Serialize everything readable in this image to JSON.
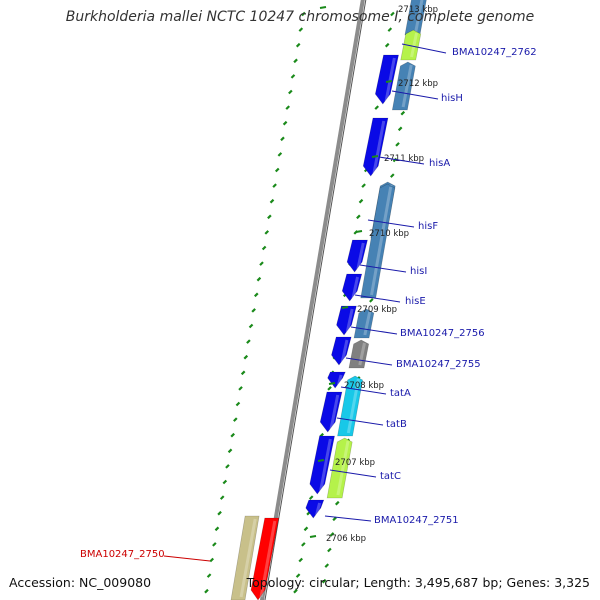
{
  "title": "Burkholderia mallei NCTC 10247 chromosome I, complete genome",
  "footer": {
    "accession": "Accession: NC_009080",
    "topology": "Topology: circular; Length: 3,495,687 bp; Genes: 3,325"
  },
  "colors": {
    "forward_cds": "#0a0ae6",
    "reverse_cds": "#4682b4",
    "gene_label": "#1a1aaa",
    "highlight_label": "#cc0000",
    "highlight_gene": "#ff0000",
    "rna_or_other": "#b5f24a",
    "pseudo": "#808080",
    "cyan_feature": "#18c8e8",
    "tan_feature": "#c8c08a",
    "ruler_tick": "#1a8a1a",
    "backbone": "#8c8c8c"
  },
  "ruler": [
    {
      "label": "2713 kbp"
    },
    {
      "label": "2712 kbp"
    },
    {
      "label": "2711 kbp"
    },
    {
      "label": "2710 kbp"
    },
    {
      "label": "2709 kbp"
    },
    {
      "label": "2708 kbp"
    },
    {
      "label": "2707 kbp"
    },
    {
      "label": "2706 kbp"
    }
  ],
  "gene_labels": [
    {
      "text": "BMA10247_2762",
      "highlight": false
    },
    {
      "text": "hisH",
      "highlight": false
    },
    {
      "text": "hisA",
      "highlight": false
    },
    {
      "text": "hisF",
      "highlight": false
    },
    {
      "text": "hisI",
      "highlight": false
    },
    {
      "text": "hisE",
      "highlight": false
    },
    {
      "text": "BMA10247_2756",
      "highlight": false
    },
    {
      "text": "BMA10247_2755",
      "highlight": false
    },
    {
      "text": "tatA",
      "highlight": false
    },
    {
      "text": "tatB",
      "highlight": false
    },
    {
      "text": "tatC",
      "highlight": false
    },
    {
      "text": "BMA10247_2751",
      "highlight": false
    },
    {
      "text": "BMA10247_2750",
      "highlight": true
    }
  ],
  "features": [
    {
      "strand": "reverse",
      "kind": "reverse_cds"
    },
    {
      "strand": "reverse",
      "kind": "rna_or_other"
    },
    {
      "strand": "reverse",
      "kind": "reverse_cds"
    },
    {
      "strand": "forward",
      "kind": "forward_cds"
    },
    {
      "strand": "forward",
      "kind": "forward_cds"
    },
    {
      "strand": "reverse",
      "kind": "reverse_cds"
    },
    {
      "strand": "forward",
      "kind": "forward_cds"
    },
    {
      "strand": "forward",
      "kind": "forward_cds"
    },
    {
      "strand": "reverse",
      "kind": "reverse_cds"
    },
    {
      "strand": "forward",
      "kind": "forward_cds"
    },
    {
      "strand": "forward",
      "kind": "forward_cds"
    },
    {
      "strand": "forward",
      "kind": "forward_cds"
    },
    {
      "strand": "reverse",
      "kind": "reverse_cds"
    },
    {
      "strand": "forward",
      "kind": "forward_cds"
    },
    {
      "strand": "reverse",
      "kind": "pseudo"
    },
    {
      "strand": "forward",
      "kind": "forward_cds"
    },
    {
      "strand": "reverse",
      "kind": "cyan_feature"
    },
    {
      "strand": "forward",
      "kind": "forward_cds"
    },
    {
      "strand": "reverse",
      "kind": "rna_or_other"
    },
    {
      "strand": "forward",
      "kind": "forward_cds"
    },
    {
      "strand": "reverse",
      "kind": "rna_or_other"
    },
    {
      "strand": "forward",
      "kind": "forward_cds"
    },
    {
      "strand": "reverse",
      "kind": "rna_or_other"
    },
    {
      "strand": "forward",
      "kind": "forward_cds"
    },
    {
      "strand": "forward",
      "kind": "forward_cds"
    },
    {
      "strand": "outer",
      "kind": "tan_feature"
    },
    {
      "strand": "outer",
      "kind": "highlight_gene"
    }
  ]
}
